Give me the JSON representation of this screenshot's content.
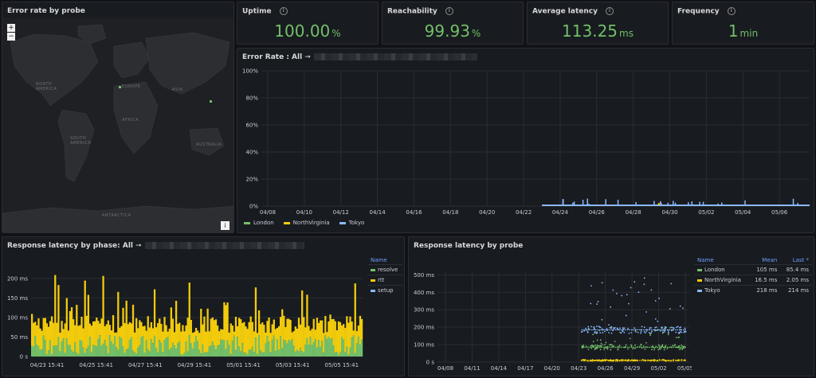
{
  "panels": {
    "map": {
      "title": "Error rate by probe",
      "zoom_in": "+",
      "zoom_out": "−",
      "info": "i",
      "labels": {
        "north_america": "NORTH AMERICA",
        "europe": "EUROPE",
        "asia": "ASIA",
        "africa": "AFRICA",
        "south_america": "SOUTH AMERICA",
        "australia": "AUSTRALIA",
        "antarctica": "ANTARCTICA"
      }
    },
    "uptime": {
      "title": "Uptime",
      "value": "100.00",
      "unit": "%"
    },
    "reachability": {
      "title": "Reachability",
      "value": "99.93",
      "unit": "%"
    },
    "latency": {
      "title": "Average latency",
      "value": "113.25",
      "unit": "ms"
    },
    "frequency": {
      "title": "Frequency",
      "value": "1",
      "unit": "min"
    },
    "error_rate": {
      "title": "Error Rate : All ➞"
    },
    "phase": {
      "title": "Response latency by phase: All ➞",
      "legend_header": "Name",
      "legend": [
        {
          "name": "resolve",
          "color": "#73bf69"
        },
        {
          "name": "rtt",
          "color": "#f2cc0c"
        },
        {
          "name": "setup",
          "color": "#8ab8ff"
        }
      ]
    },
    "probe": {
      "title": "Response latency by probe",
      "legend_headers": {
        "name": "Name",
        "mean": "Mean",
        "last": "Last *"
      },
      "legend": [
        {
          "name": "London",
          "mean": "105 ms",
          "last": "85.4 ms",
          "color": "#73bf69"
        },
        {
          "name": "NorthVirginia",
          "mean": "16.5 ms",
          "last": "2.05 ms",
          "color": "#f2cc0c"
        },
        {
          "name": "Tokyo",
          "mean": "218 ms",
          "last": "214 ms",
          "color": "#8ab8ff"
        }
      ]
    }
  },
  "chart_data": [
    {
      "type": "line",
      "title": "Error Rate : All ➞",
      "y_ticks": [
        "100%",
        "80%",
        "60%",
        "40%",
        "20%",
        "0%"
      ],
      "ylim": [
        0,
        100
      ],
      "x_ticks": [
        "04/08",
        "04/10",
        "04/12",
        "04/14",
        "04/16",
        "04/18",
        "04/20",
        "04/22",
        "04/24",
        "04/26",
        "04/28",
        "04/30",
        "05/02",
        "05/04",
        "05/06"
      ],
      "series": [
        {
          "name": "London",
          "color": "#73bf69"
        },
        {
          "name": "NorthVirginia",
          "color": "#f2cc0c"
        },
        {
          "name": "Tokyo",
          "color": "#8ab8ff"
        }
      ],
      "note_values_pct": {
        "data_start": "04/23",
        "baseline": 0,
        "spikes_max": 5
      }
    },
    {
      "type": "bar",
      "title": "Response latency by phase: All ➞",
      "y_ticks": [
        "200 ms",
        "150 ms",
        "100 ms",
        "50 ms",
        "0 s"
      ],
      "ylim": [
        0,
        210
      ],
      "x_ticks": [
        "04/23 15:41",
        "04/25 15:41",
        "04/27 15:41",
        "04/29 15:41",
        "05/01 15:41",
        "05/03 15:41",
        "05/05 15:41"
      ],
      "series": [
        {
          "name": "resolve",
          "color": "#73bf69",
          "typical": 30
        },
        {
          "name": "rtt",
          "color": "#f2cc0c",
          "typical": 60
        },
        {
          "name": "setup",
          "color": "#8ab8ff",
          "typical": 0
        }
      ],
      "peak": 210
    },
    {
      "type": "scatter",
      "title": "Response latency by probe",
      "y_ticks": [
        "500 ms",
        "400 ms",
        "300 ms",
        "200 ms",
        "100 ms",
        "0 s"
      ],
      "ylim": [
        0,
        520
      ],
      "x_ticks": [
        "04/08",
        "04/11",
        "04/14",
        "04/17",
        "04/20",
        "04/23",
        "04/26",
        "04/29",
        "05/02",
        "05/05"
      ],
      "series": [
        {
          "name": "London",
          "color": "#73bf69",
          "center": 85
        },
        {
          "name": "NorthVirginia",
          "color": "#f2cc0c",
          "center": 10
        },
        {
          "name": "Tokyo",
          "color": "#8ab8ff",
          "center": 185
        }
      ]
    }
  ]
}
